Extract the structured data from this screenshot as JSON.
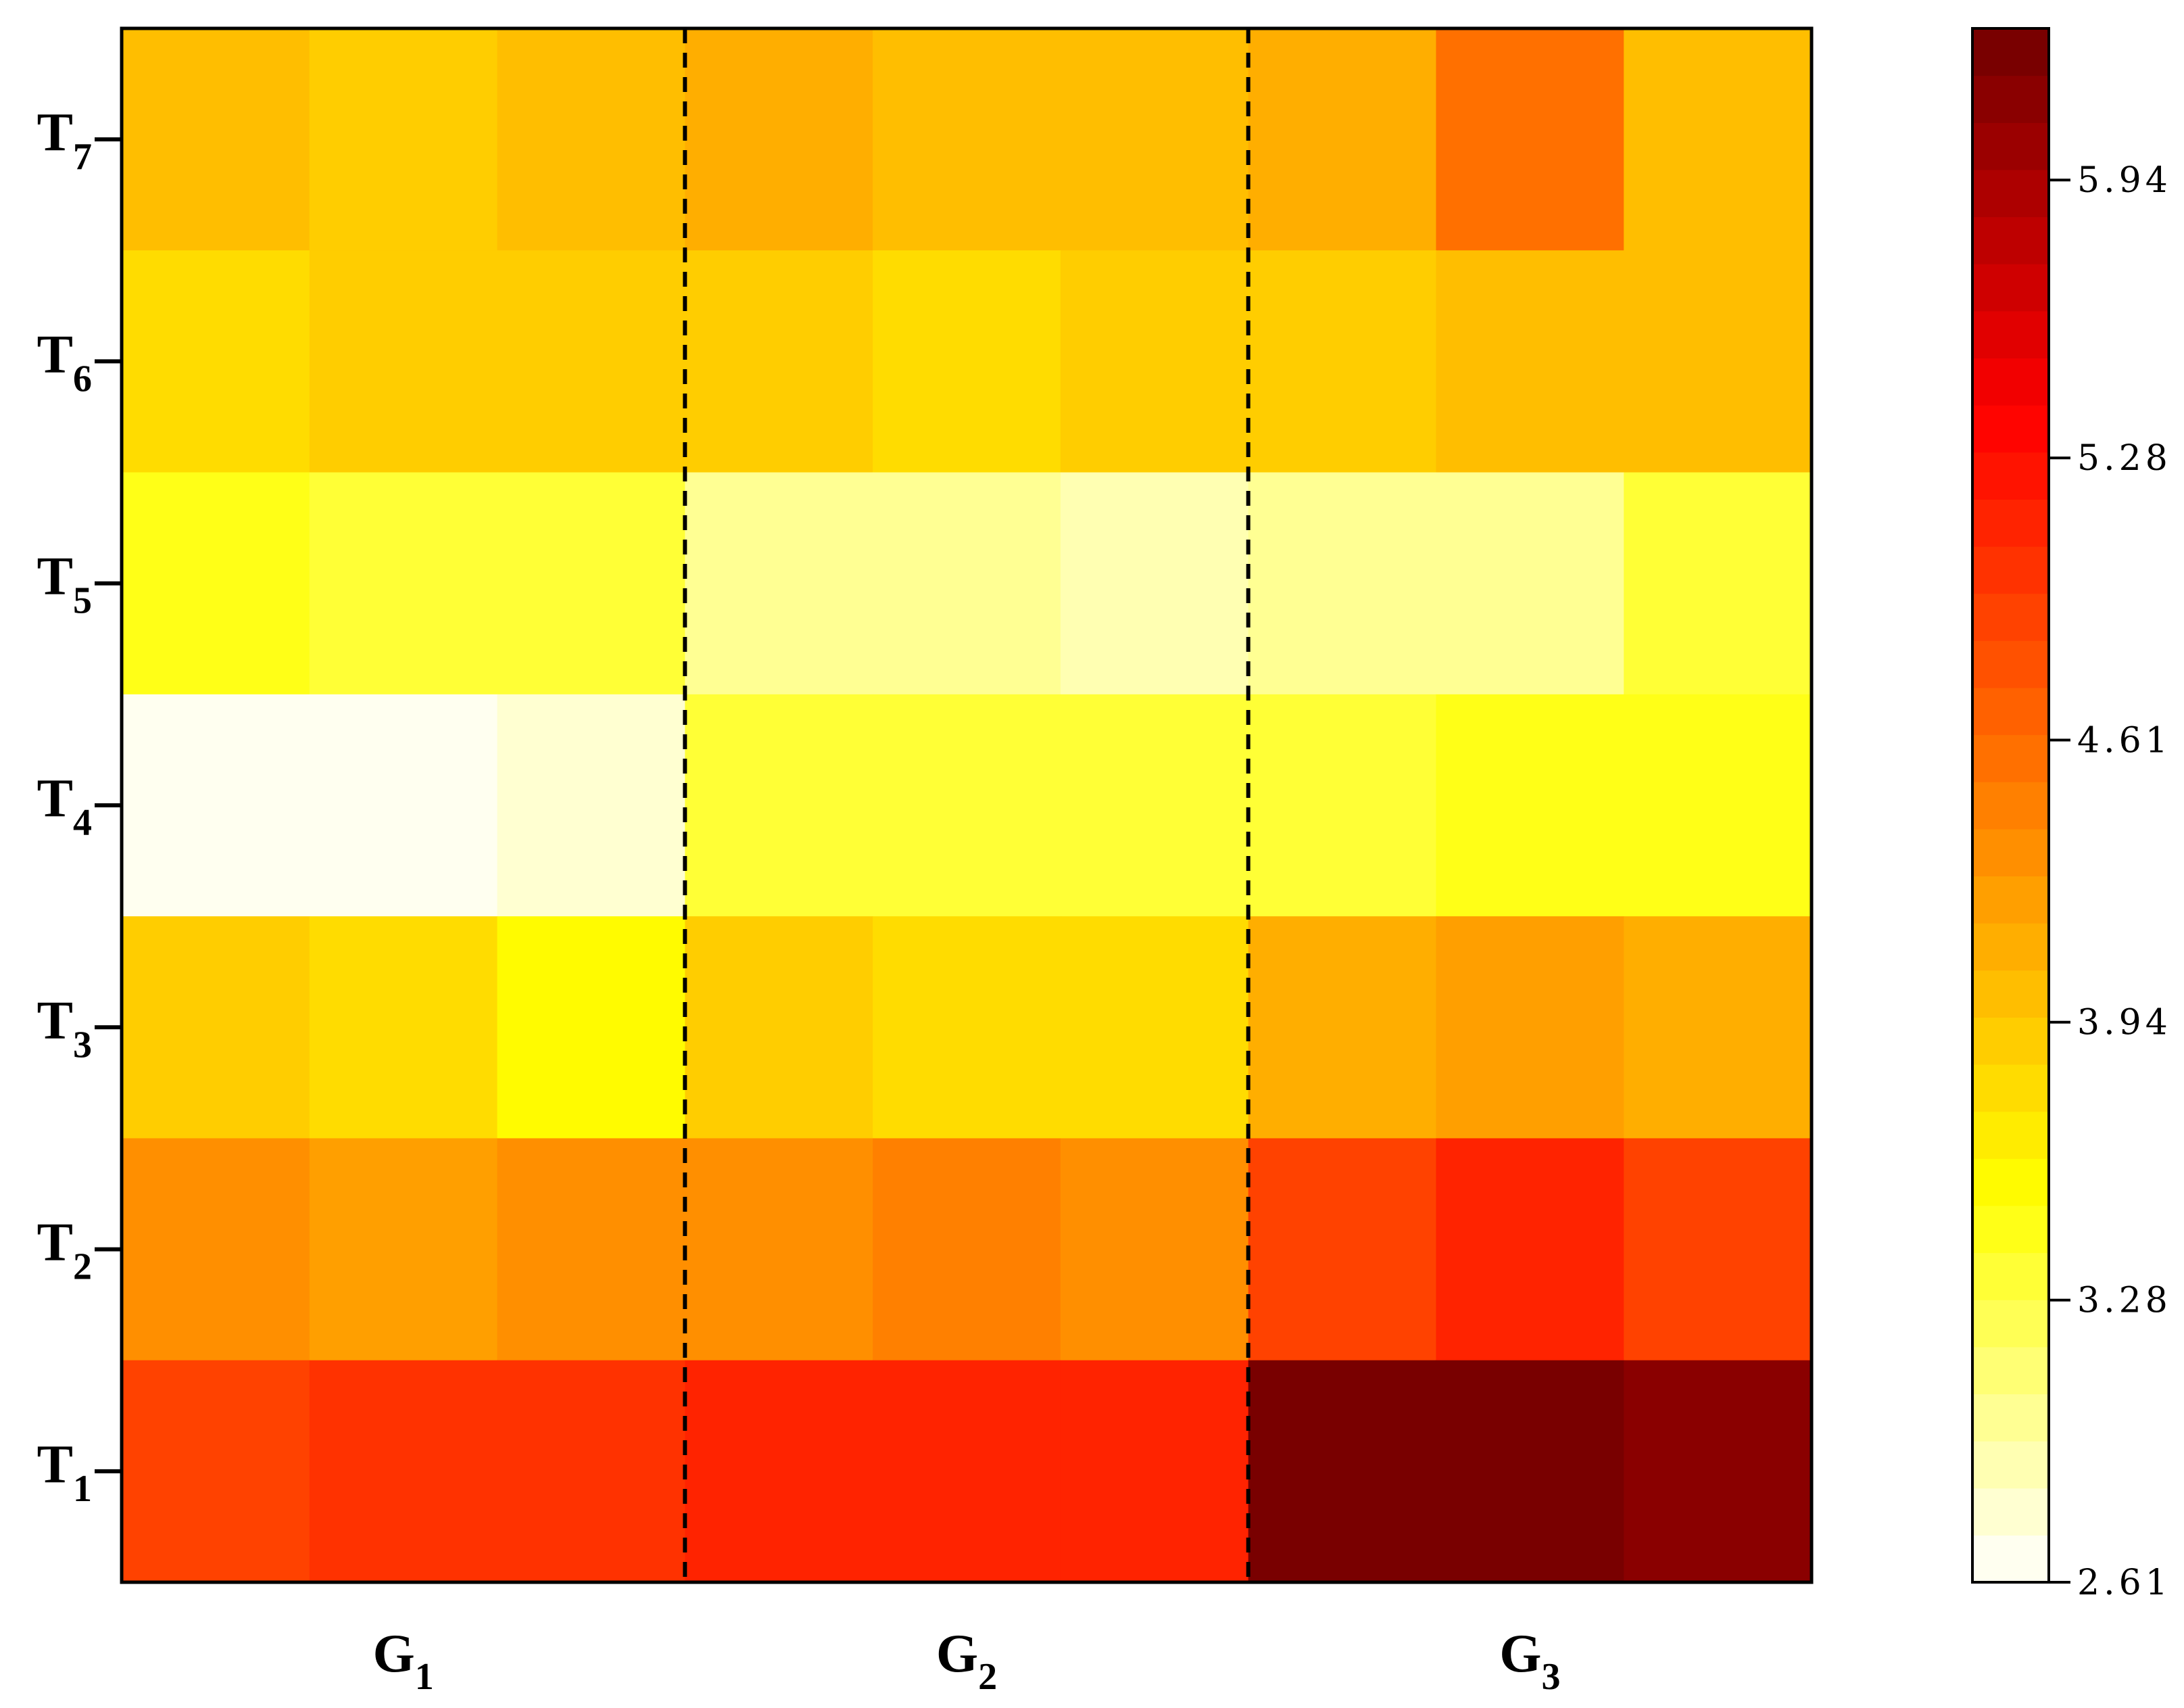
{
  "chart_data": {
    "type": "heatmap",
    "rows": [
      {
        "main": "T",
        "sub": "7"
      },
      {
        "main": "T",
        "sub": "6"
      },
      {
        "main": "T",
        "sub": "5"
      },
      {
        "main": "T",
        "sub": "4"
      },
      {
        "main": "T",
        "sub": "3"
      },
      {
        "main": "T",
        "sub": "2"
      },
      {
        "main": "T",
        "sub": "1"
      }
    ],
    "groups": [
      {
        "main": "G",
        "sub": "1"
      },
      {
        "main": "G",
        "sub": "2"
      },
      {
        "main": "G",
        "sub": "3"
      }
    ],
    "columns_per_group": 3,
    "group_separator": "dashed",
    "values": [
      [
        4.05,
        3.95,
        4.0,
        4.1,
        4.0,
        4.0,
        4.1,
        4.6,
        4.05
      ],
      [
        3.8,
        3.85,
        3.85,
        3.9,
        3.75,
        3.9,
        3.95,
        4.05,
        4.05
      ],
      [
        3.4,
        3.3,
        3.35,
        2.95,
        3.05,
        2.9,
        3.05,
        3.0,
        3.35
      ],
      [
        2.61,
        2.61,
        2.75,
        3.3,
        3.3,
        3.3,
        3.35,
        3.5,
        3.5
      ],
      [
        3.85,
        3.75,
        3.6,
        3.95,
        3.75,
        3.75,
        4.1,
        4.25,
        4.15
      ],
      [
        4.35,
        4.2,
        4.3,
        4.35,
        4.4,
        4.35,
        4.95,
        5.1,
        4.85
      ],
      [
        4.85,
        5.0,
        5.0,
        5.1,
        5.1,
        5.1,
        6.3,
        6.3,
        6.1
      ]
    ],
    "colorbar": {
      "min": 2.61,
      "max": 6.3,
      "levels": 33,
      "ticks": [
        2.61,
        3.28,
        3.94,
        4.61,
        5.28,
        5.94
      ],
      "tick_labels": [
        "2.61",
        "3.28",
        "3.94",
        "4.61",
        "5.28",
        "5.94"
      ],
      "colors": [
        "#ffffff",
        "#ffff00",
        "#ff8000",
        "#ff0000",
        "#700000"
      ]
    }
  }
}
